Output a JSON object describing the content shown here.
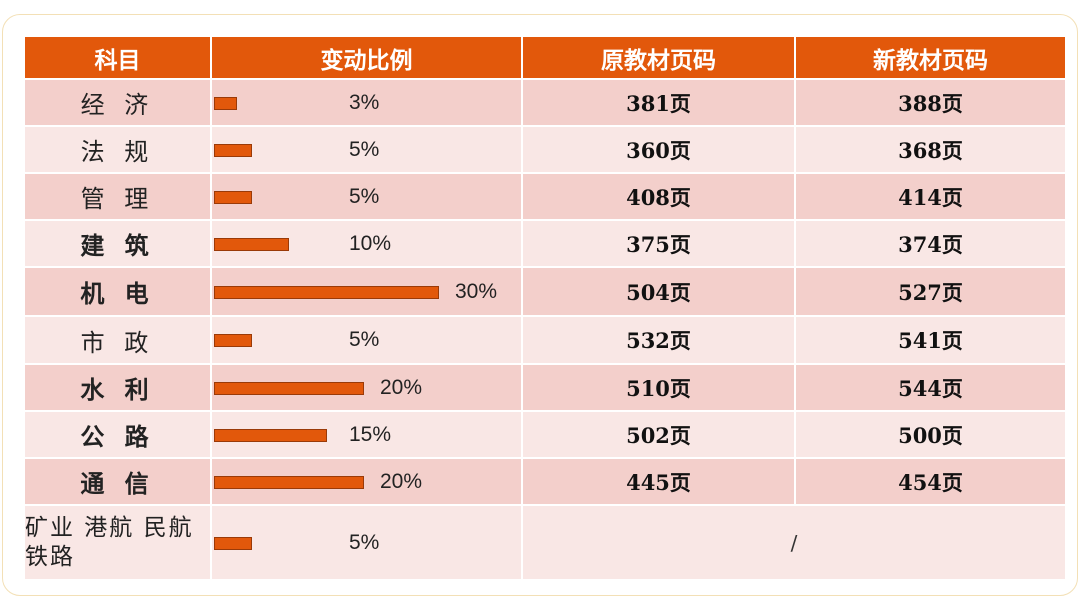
{
  "chart_data": {
    "type": "table",
    "columns": [
      "科目",
      "变动比例",
      "原教材页码",
      "新教材页码"
    ],
    "rows": [
      {
        "name": "经 济",
        "bold": false,
        "pct_value": 3,
        "pct": "3%",
        "old": "381页",
        "new": "388页"
      },
      {
        "name": "法 规",
        "bold": false,
        "pct_value": 5,
        "pct": "5%",
        "old": "360页",
        "new": "368页"
      },
      {
        "name": "管 理",
        "bold": false,
        "pct_value": 5,
        "pct": "5%",
        "old": "408页",
        "new": "414页"
      },
      {
        "name": "建 筑",
        "bold": true,
        "pct_value": 10,
        "pct": "10%",
        "old": "375页",
        "new": "374页"
      },
      {
        "name": "机 电",
        "bold": true,
        "pct_value": 30,
        "pct": "30%",
        "old": "504页",
        "new": "527页"
      },
      {
        "name": "市 政",
        "bold": false,
        "pct_value": 5,
        "pct": "5%",
        "old": "532页",
        "new": "541页"
      },
      {
        "name": "水 利",
        "bold": true,
        "pct_value": 20,
        "pct": "20%",
        "old": "510页",
        "new": "544页"
      },
      {
        "name": "公 路",
        "bold": true,
        "pct_value": 15,
        "pct": "15%",
        "old": "502页",
        "new": "500页"
      },
      {
        "name": "通 信",
        "bold": true,
        "pct_value": 20,
        "pct": "20%",
        "old": "445页",
        "new": "454页"
      }
    ],
    "last_row": {
      "name_line1": "矿业 港航",
      "name_line2": "民航 铁路",
      "pct_value": 5,
      "pct": "5%",
      "merged": "/"
    }
  },
  "colors": {
    "header": "#e2580b",
    "row_dark": "#f3cfcb",
    "row_light": "#f9e7e5",
    "bar": "#e2580b"
  }
}
